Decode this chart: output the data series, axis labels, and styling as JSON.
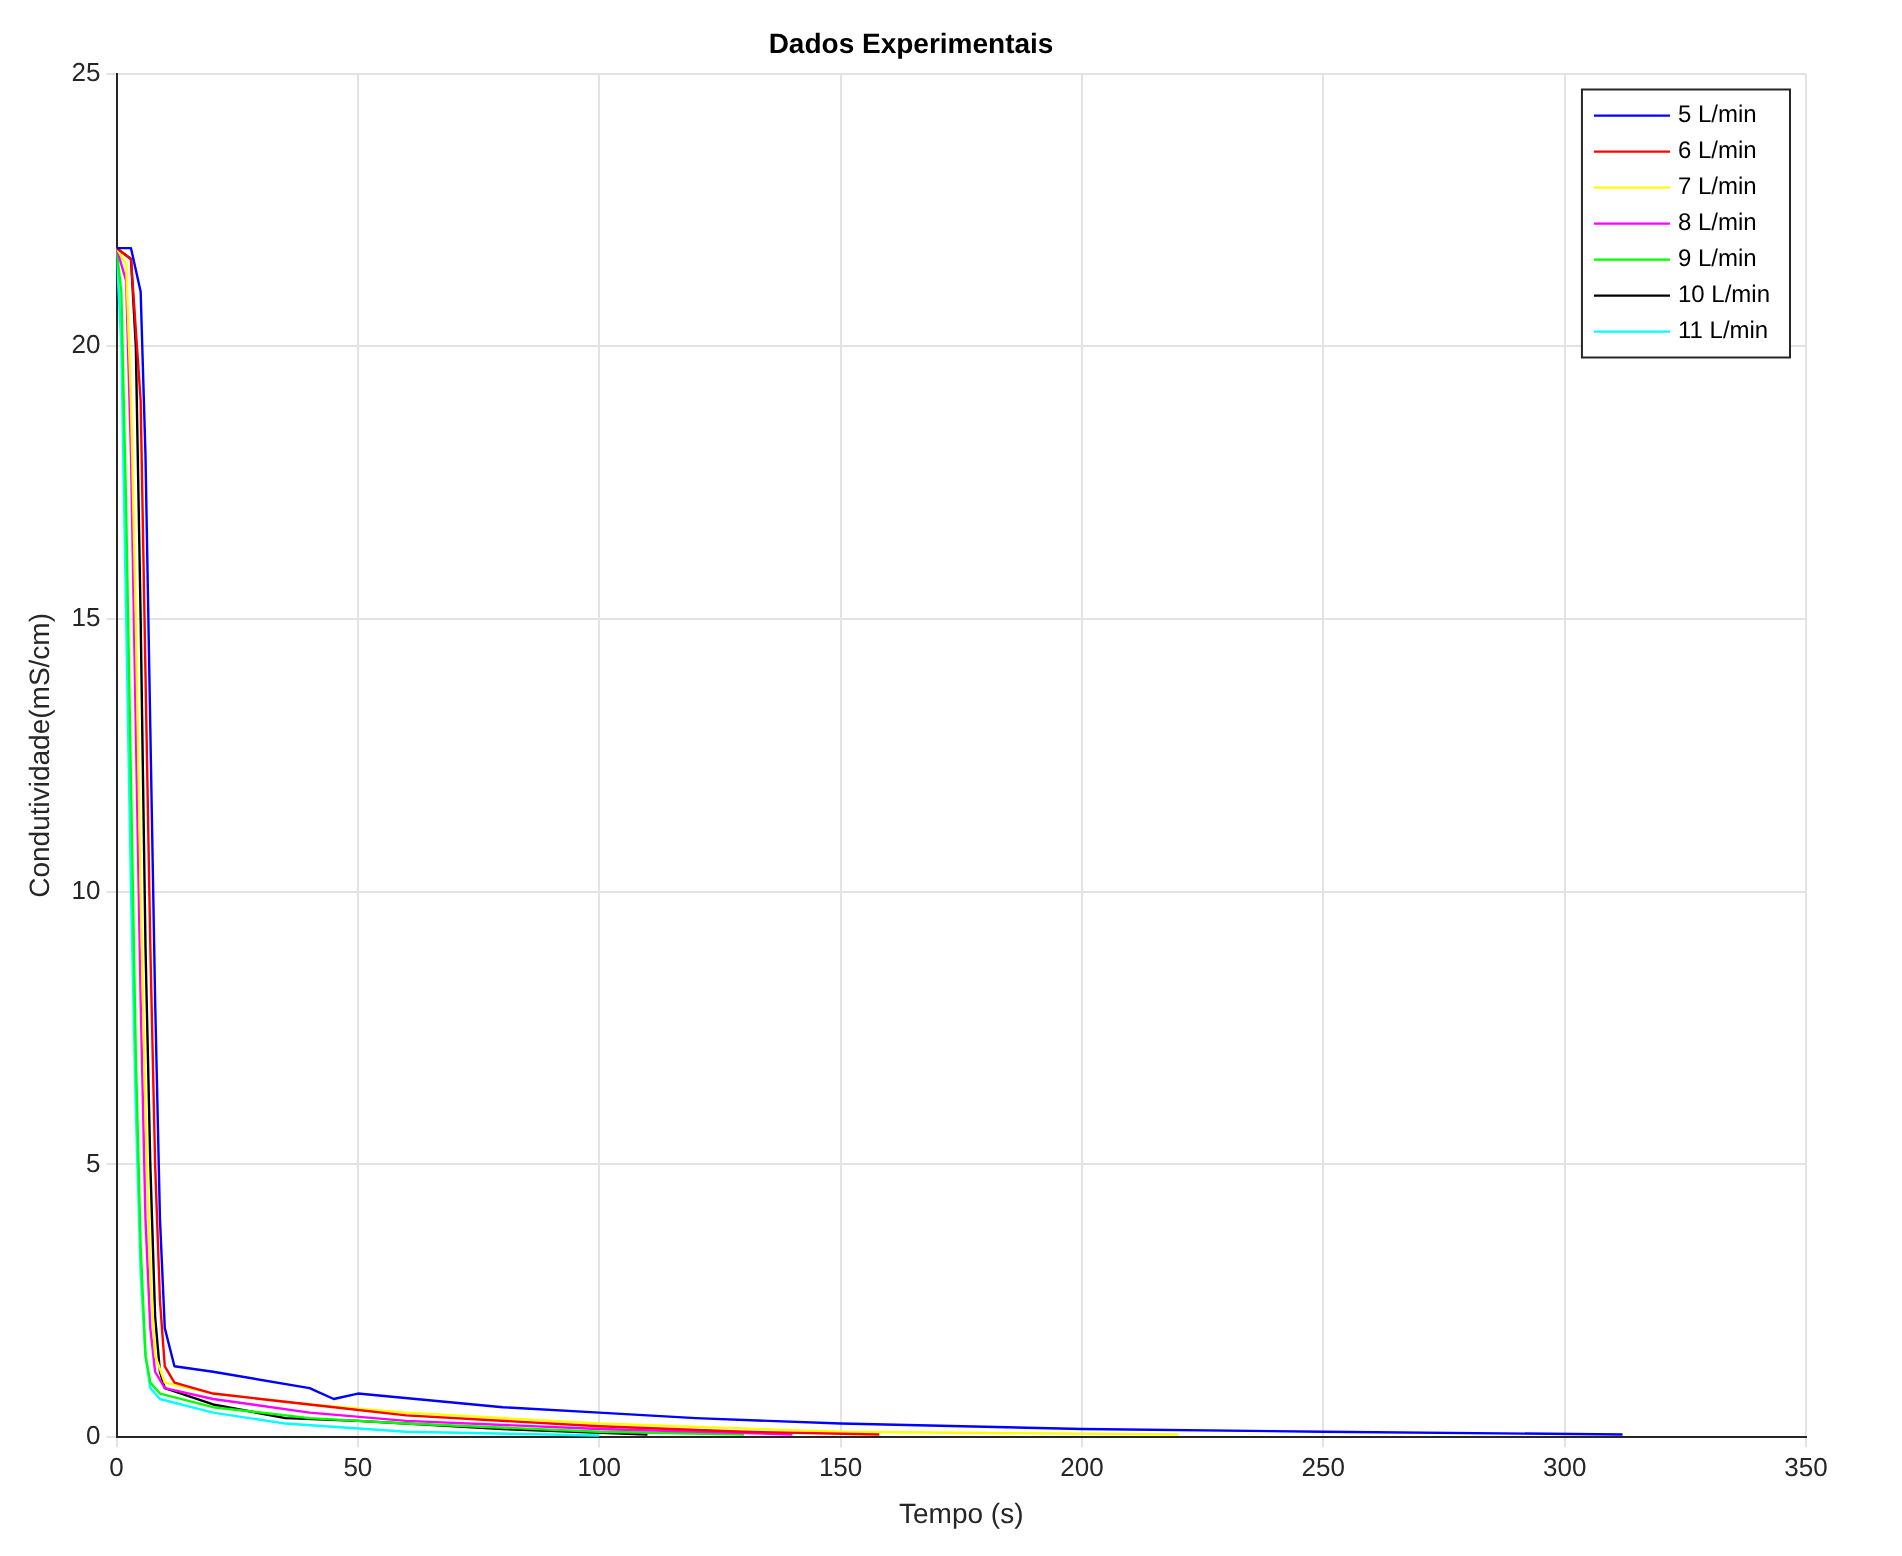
{
  "chart_data": {
    "type": "line",
    "title": "Dados Experimentais",
    "xlabel": "Tempo (s)",
    "ylabel": "Condutividade(mS/cm)",
    "xlim": [
      0,
      350
    ],
    "xticks": [
      0,
      50,
      100,
      150,
      200,
      250,
      300,
      350
    ],
    "ylim": [
      0,
      25
    ],
    "yticks": [
      0,
      5,
      10,
      15,
      20,
      25
    ],
    "grid": true,
    "legend": "top right",
    "marker": "none",
    "line_style": "solid",
    "series": [
      {
        "name": "5 L/min",
        "color": "#0000ff",
        "x": [
          0,
          3,
          5,
          6,
          7,
          8,
          9,
          10,
          12,
          20,
          40,
          45,
          50,
          80,
          100,
          120,
          150,
          200,
          250,
          312
        ],
        "values": [
          21.8,
          21.8,
          21,
          18,
          13,
          8,
          4,
          2,
          1.3,
          1.2,
          0.9,
          0.7,
          0.8,
          0.55,
          0.45,
          0.35,
          0.25,
          0.15,
          0.1,
          0.05
        ]
      },
      {
        "name": "6 L/min",
        "color": "#ff0000",
        "x": [
          0,
          3,
          5,
          6,
          7,
          8,
          9,
          10,
          12,
          20,
          40,
          60,
          100,
          130,
          158
        ],
        "values": [
          21.8,
          21.6,
          19,
          14,
          9,
          5,
          2.5,
          1.3,
          1,
          0.8,
          0.6,
          0.4,
          0.2,
          0.1,
          0.05
        ]
      },
      {
        "name": "7 L/min",
        "color": "#ffff00",
        "x": [
          0,
          2,
          3,
          4,
          5,
          6,
          7,
          8,
          10,
          20,
          40,
          60,
          100,
          150,
          220
        ],
        "values": [
          21.8,
          21.5,
          19,
          15,
          10,
          6,
          3,
          1.5,
          1,
          0.8,
          0.6,
          0.45,
          0.25,
          0.1,
          0.05
        ]
      },
      {
        "name": "8 L/min",
        "color": "#ff00ff",
        "x": [
          0,
          2,
          3,
          4,
          5,
          6,
          7,
          8,
          10,
          20,
          40,
          60,
          100,
          140
        ],
        "values": [
          21.8,
          21.2,
          18,
          13,
          8,
          4,
          2,
          1.2,
          0.9,
          0.7,
          0.45,
          0.3,
          0.15,
          0.05
        ]
      },
      {
        "name": "9 L/min",
        "color": "#00ff00",
        "x": [
          0,
          1,
          2,
          3,
          4,
          5,
          6,
          7,
          9,
          20,
          40,
          60,
          100,
          130
        ],
        "values": [
          21.8,
          21,
          17,
          12,
          7,
          3.5,
          1.5,
          1,
          0.8,
          0.55,
          0.35,
          0.25,
          0.1,
          0.05
        ]
      },
      {
        "name": "10 L/min",
        "color": "#000000",
        "x": [
          0,
          3,
          4,
          5,
          6,
          7,
          8,
          9,
          10,
          20,
          35,
          50,
          80,
          110
        ],
        "values": [
          21.8,
          21.6,
          20,
          15,
          9,
          5,
          2.2,
          1.2,
          0.9,
          0.6,
          0.35,
          0.3,
          0.15,
          0.05
        ]
      },
      {
        "name": "11 L/min",
        "color": "#00ffff",
        "x": [
          0,
          1,
          2,
          3,
          4,
          5,
          6,
          7,
          9,
          20,
          35,
          60,
          100
        ],
        "values": [
          21.8,
          20,
          15,
          10,
          6,
          3,
          1.5,
          0.9,
          0.7,
          0.45,
          0.25,
          0.1,
          0.03
        ]
      }
    ]
  }
}
